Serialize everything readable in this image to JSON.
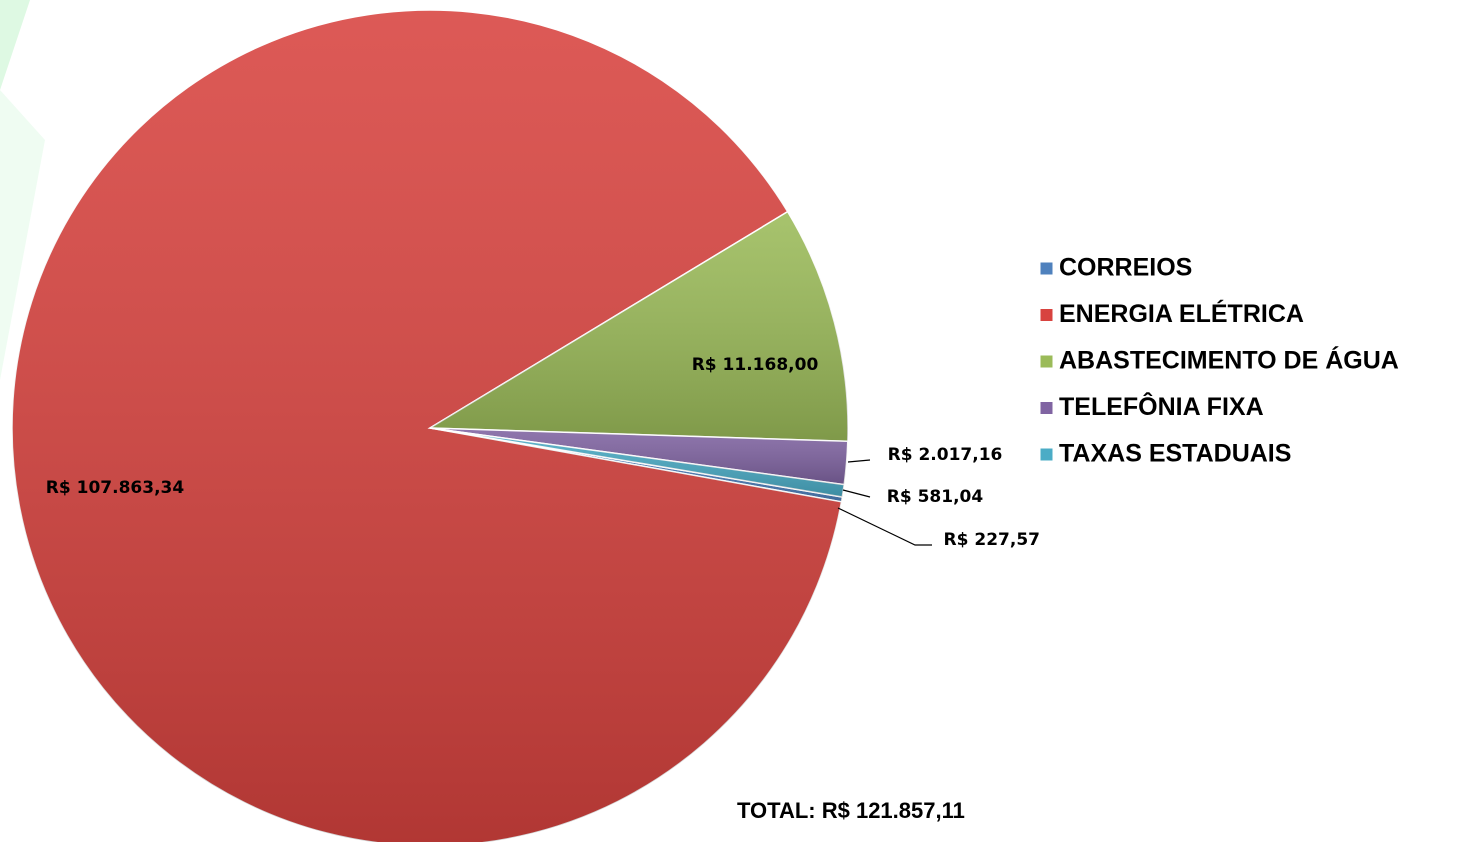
{
  "chart_data": {
    "type": "pie",
    "categories": [
      "CORREIOS",
      "ENERGIA ELÉTRICA",
      "ABASTECIMENTO DE ÁGUA",
      "TELEFÔNIA FIXA",
      "TAXAS ESTADUAIS"
    ],
    "values": [
      227.57,
      107863.34,
      11168.0,
      2017.16,
      581.04
    ],
    "value_labels": [
      "R$ 227,57",
      "R$ 107.863,34",
      "R$ 11.168,00",
      "R$ 2.017,16",
      "R$ 581,04"
    ],
    "colors": [
      "#4f81bd",
      "#d8433f",
      "#9bbb59",
      "#8064a2",
      "#4bacc6"
    ],
    "annotation": "TOTAL:  R$  121.857,11",
    "legend": "right"
  }
}
